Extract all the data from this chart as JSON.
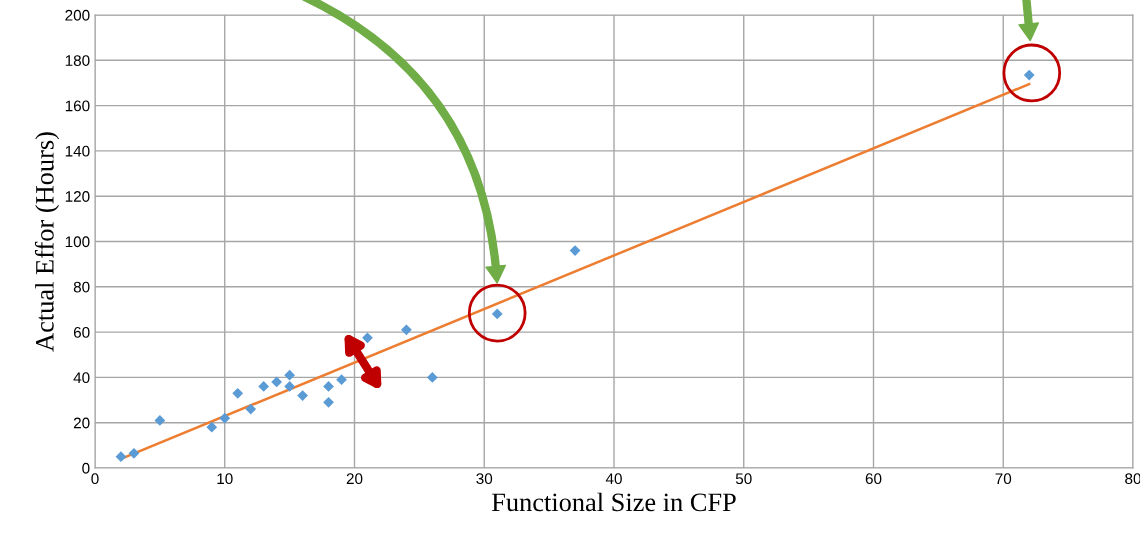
{
  "chart_data": {
    "type": "scatter",
    "xlabel": "Functional Size in CFP",
    "ylabel": "Actual Effor (Hours)",
    "xlim": [
      0,
      80
    ],
    "xticks": [
      0,
      10,
      20,
      30,
      40,
      50,
      60,
      70,
      80
    ],
    "ylim": [
      0,
      200
    ],
    "yticks": [
      0,
      20,
      40,
      60,
      80,
      100,
      120,
      140,
      160,
      180,
      200
    ],
    "grid": true,
    "marker": "diamond",
    "series": [
      {
        "color": "#5b9bd5",
        "x": [
          2,
          3,
          5,
          9,
          10,
          11,
          12,
          13,
          14,
          15,
          15,
          16,
          18,
          18,
          19,
          21,
          24,
          26,
          31,
          37,
          72
        ],
        "values": [
          5,
          6.5,
          21,
          18,
          22,
          33,
          26,
          36,
          38,
          41,
          36,
          32,
          36,
          29,
          39,
          57.5,
          61,
          40,
          68,
          96,
          173.5
        ]
      },
      {
        "type": "line",
        "marker": "none",
        "color": "#ed7d31",
        "x": [
          2,
          72
        ],
        "values": [
          4,
          169.5
        ]
      }
    ]
  }
}
